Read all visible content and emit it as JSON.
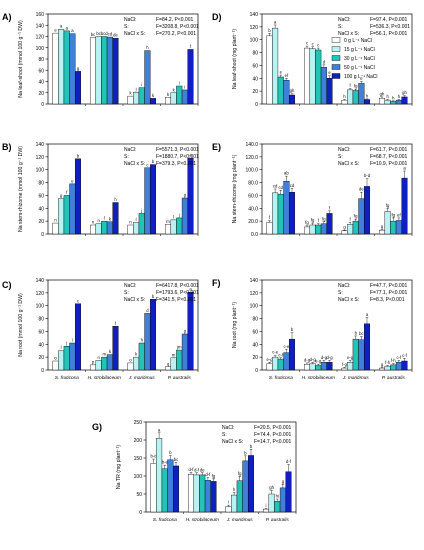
{
  "figure": {
    "species": [
      "S. fruticosa",
      "H. strobilaceum",
      "J. maritimus",
      "P. australis"
    ],
    "legend": {
      "entries": [
        "0 g L⁻¹ NaCl",
        "15 g L⁻¹ NaCl",
        "30 g L⁻¹ NaCl",
        "50 g L⁻¹ NaCl",
        "100 g L⁻¹ NaCl"
      ],
      "colors": [
        "#ffffff",
        "#b9f2f2",
        "#22c4b8",
        "#3f80d8",
        "#0f1fc0"
      ]
    }
  },
  "chart_data": [
    {
      "id": "A",
      "panel_label": "A)",
      "type": "bar",
      "ylabel": "Na leaf-shoot (mmol 100 g⁻¹ DW)",
      "ylim": [
        0,
        160
      ],
      "yticks": [
        "0",
        "20",
        "40",
        "60",
        "80",
        "100",
        "120",
        "140",
        "160"
      ],
      "categories": [
        "S. fruticosa",
        "H. strobilaceum",
        "J. maritimus",
        "P. australis"
      ],
      "values": [
        [
          126,
          133,
          130,
          125,
          58
        ],
        [
          118,
          120,
          120,
          119,
          117
        ],
        [
          14,
          21,
          29,
          95,
          10
        ],
        [
          12,
          20,
          32,
          25,
          97
        ]
      ],
      "letters": [
        [
          "e",
          "a",
          "a",
          "a",
          "g"
        ],
        [
          "bc",
          "bc",
          "bcd",
          "cd",
          "de"
        ],
        [
          "k",
          "j",
          "i",
          "h",
          "k"
        ],
        [
          "k",
          "k",
          "i",
          "i",
          "f"
        ]
      ],
      "stats": [
        [
          "NaCl:",
          "F=84.2, P<0.001"
        ],
        [
          "S:",
          "F=3208.8, P<0.001"
        ],
        [
          "NaCl x S:",
          "F=270.2, P<0.001"
        ]
      ]
    },
    {
      "id": "B",
      "panel_label": "B)",
      "type": "bar",
      "ylabel": "Na stem-rhizome (mmol 100 g⁻¹ DW)",
      "ylim": [
        0,
        140
      ],
      "yticks": [
        "0",
        "20",
        "40",
        "60",
        "80",
        "100",
        "120",
        "140"
      ],
      "categories": [
        "S. fruticosa",
        "H. strobilaceum",
        "J. maritimus",
        "P. australis"
      ],
      "values": [
        [
          17,
          55,
          60,
          78,
          117
        ],
        [
          14,
          16,
          20,
          19,
          49
        ],
        [
          14,
          18,
          32,
          103,
          108
        ],
        [
          15,
          22,
          25,
          56,
          118
        ]
      ],
      "letters": [
        [
          "n",
          "g",
          "f",
          "e",
          "b"
        ],
        [
          "n",
          "n",
          "l",
          "k",
          "h"
        ],
        [
          "n",
          "l",
          "j",
          "c",
          "b"
        ],
        [
          "m",
          "l",
          "j",
          "g",
          "a"
        ]
      ],
      "stats": [
        [
          "NaCl:",
          "F=5571.3, P<0.001"
        ],
        [
          "S:",
          "F=1880.7, P<0.001"
        ],
        [
          "NaCl x S:",
          "F=379.3, P<0.001"
        ]
      ]
    },
    {
      "id": "C",
      "panel_label": "C)",
      "type": "bar",
      "ylabel": "Na root (mmol 100 g⁻¹ DW)",
      "ylim": [
        0,
        140
      ],
      "yticks": [
        "0",
        "20",
        "40",
        "60",
        "80",
        "100",
        "120",
        "140"
      ],
      "categories": [
        "S. fruticosa",
        "H. strobilaceum",
        "J. maritimus",
        "P. australis"
      ],
      "values": [
        [
          14,
          30,
          37,
          42,
          103
        ],
        [
          8,
          15,
          20,
          24,
          68
        ],
        [
          11,
          20,
          42,
          88,
          110
        ],
        [
          5,
          19,
          31,
          56,
          121
        ]
      ],
      "letters": [
        [
          "o",
          "l",
          "j",
          "i",
          "c"
        ],
        [
          "p",
          "n",
          "m",
          "k",
          "f"
        ],
        [
          "o",
          "k",
          "h",
          "d",
          "b"
        ],
        [
          "q",
          "m",
          "jm",
          "g",
          "a"
        ]
      ],
      "stats": [
        [
          "NaCl:",
          "F=6417.8, P<0.001"
        ],
        [
          "S:",
          "F=1793.6, P<0.001"
        ],
        [
          "NaCl x S:",
          "F=341.5, P<0.001"
        ]
      ]
    },
    {
      "id": "D",
      "panel_label": "D)",
      "type": "bar",
      "ylabel": "Na leaf-shoot (mg plant⁻¹)",
      "ylim": [
        0,
        140
      ],
      "yticks": [
        "0",
        "20",
        "40",
        "60",
        "80",
        "100",
        "120",
        "140"
      ],
      "categories": [
        "S. fruticosa",
        "H. strobilaceum",
        "J. maritimus",
        "P. australis"
      ],
      "values": [
        [
          106,
          118,
          42,
          37,
          14
        ],
        [
          87,
          86,
          84,
          57,
          40
        ],
        [
          6,
          22,
          21,
          32,
          7
        ],
        [
          9,
          6,
          4,
          6,
          11
        ]
      ],
      "errors": [
        [
          4,
          5,
          3,
          3,
          2
        ],
        [
          3,
          3,
          3,
          4,
          4
        ],
        [
          1,
          2,
          2,
          3,
          1
        ],
        [
          2,
          1,
          1,
          1,
          2
        ]
      ],
      "letters": [
        [
          "b",
          "a",
          "e",
          "ef",
          "gh"
        ],
        [
          "c",
          "c",
          "c",
          "d",
          "e"
        ],
        [
          "h",
          "f",
          "fg",
          "e",
          "h"
        ],
        [
          "gh",
          "h",
          "h",
          "h",
          "gh"
        ]
      ],
      "stats": [
        [
          "NaCl:",
          "F=97.4, P<0.001"
        ],
        [
          "S:",
          "F=536.3, P<0.001"
        ],
        [
          "NaCl x S:",
          "F=56.1, P<0.001"
        ]
      ]
    },
    {
      "id": "E",
      "panel_label": "E)",
      "type": "bar",
      "ylabel": "Na stem-rhizome (mg plant⁻¹)",
      "ylim": [
        0,
        140
      ],
      "yticks": [
        "0.0",
        "20.0",
        "40.0",
        "60.0",
        "80.0",
        "100.0",
        "120.0",
        "140.0"
      ],
      "categories": [
        "S. fruticosa",
        "H. strobilaceum",
        "J. maritimus",
        "P. australis"
      ],
      "values": [
        [
          18,
          64,
          62,
          82,
          65
        ],
        [
          11,
          14,
          14,
          16,
          32
        ],
        [
          5,
          15,
          20,
          55,
          74
        ],
        [
          6,
          35,
          20,
          21,
          87
        ]
      ],
      "errors": [
        [
          3,
          6,
          6,
          8,
          6
        ],
        [
          2,
          3,
          2,
          3,
          4
        ],
        [
          1,
          3,
          3,
          10,
          12
        ],
        [
          1,
          5,
          5,
          4,
          11
        ]
      ],
      "letters": [
        [
          "f",
          "cd",
          "cd",
          "ab",
          "cd"
        ],
        [
          "fg",
          "fg",
          "f",
          "fg",
          "f"
        ],
        [
          "g",
          "f",
          "fg",
          "de",
          "b-d"
        ],
        [
          "g",
          "fg",
          "fg",
          "ef",
          "a"
        ]
      ],
      "stats": [
        [
          "NaCl:",
          "F=61.7, P<0.001"
        ],
        [
          "S:",
          "F=68.7, P<0.001"
        ],
        [
          "NaCl x S:",
          "F=10.9, P<0.001"
        ]
      ]
    },
    {
      "id": "F",
      "panel_label": "F)",
      "type": "bar",
      "ylabel": "Na root (mg plant⁻¹)",
      "ylim": [
        0,
        140
      ],
      "yticks": [
        "0",
        "20",
        "40",
        "60",
        "80",
        "100",
        "120",
        "140"
      ],
      "categories": [
        "S. fruticosa",
        "H. strobilaceum",
        "J. maritimus",
        "P. australis"
      ],
      "values": [
        [
          10,
          20,
          17,
          27,
          48
        ],
        [
          9,
          10,
          7,
          12,
          12
        ],
        [
          3,
          12,
          48,
          47,
          72
        ],
        [
          3,
          6,
          8,
          12,
          14
        ]
      ],
      "errors": [
        [
          2,
          3,
          2,
          5,
          10
        ],
        [
          2,
          2,
          2,
          3,
          3
        ],
        [
          1,
          3,
          5,
          5,
          10
        ],
        [
          1,
          1,
          2,
          3,
          4
        ]
      ],
      "letters": [
        [
          "e-g",
          "c-e",
          "c-f",
          "c-e",
          "b"
        ],
        [
          "d-g",
          "d-g",
          "e-g",
          "d-g",
          "d-g"
        ],
        [
          "f-g",
          "e-g",
          "b",
          "bc",
          "a"
        ],
        [
          "g",
          "f-h",
          "f-h",
          "c-f",
          "c-f"
        ]
      ],
      "stats": [
        [
          "NaCl:",
          "F=47.7, P<0.001"
        ],
        [
          "S:",
          "F=77.1, P<0.001"
        ],
        [
          "NaCl x S:",
          "F=8.3, P<0.001"
        ]
      ]
    },
    {
      "id": "G",
      "panel_label": "G)",
      "type": "bar",
      "ylabel": "Na TR (mg plant⁻¹)",
      "ylim": [
        0,
        250
      ],
      "yticks": [
        "0",
        "50",
        "100",
        "150",
        "200",
        "250"
      ],
      "categories": [
        "S. fruticosa",
        "H. strobilaceum",
        "J. maritimus",
        "P. australis"
      ],
      "values": [
        [
          135,
          205,
          120,
          145,
          128
        ],
        [
          105,
          103,
          103,
          88,
          85
        ],
        [
          15,
          47,
          87,
          142,
          157
        ],
        [
          8,
          50,
          30,
          67,
          112
        ]
      ],
      "errors": [
        [
          12,
          15,
          10,
          12,
          10
        ],
        [
          5,
          6,
          6,
          8,
          7
        ],
        [
          4,
          7,
          12,
          14,
          17
        ],
        [
          2,
          10,
          6,
          10,
          20
        ]
      ],
      "letters": [
        [
          "b-d",
          "a",
          "b-e",
          "b",
          "bc"
        ],
        [
          "d-f",
          "d-f",
          "de",
          "d-f",
          "fg"
        ],
        [
          "i",
          "h",
          "fg",
          "b",
          "b"
        ],
        [
          "i",
          "gh",
          "hi",
          "g",
          "d-f"
        ]
      ],
      "stats": [
        [
          "NaCl:",
          "F=20.5, P<0.001"
        ],
        [
          "S:",
          "F=74.4, P<0.001"
        ],
        [
          "NaCl x S:",
          "F=14.7, P<0.001"
        ]
      ]
    }
  ]
}
